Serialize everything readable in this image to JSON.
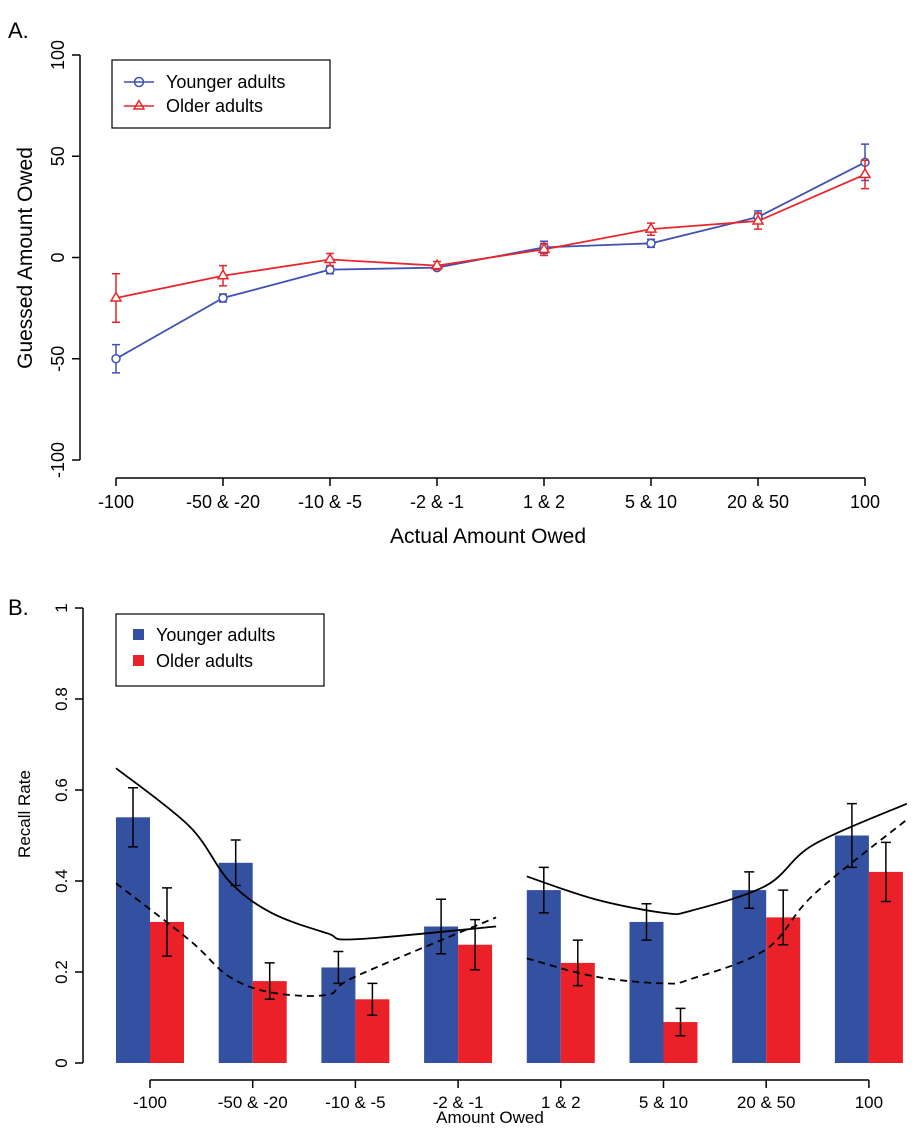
{
  "chart_data": [
    {
      "panel_label": "A.",
      "type": "line",
      "title": "",
      "xlabel": "Actual Amount Owed",
      "ylabel": "Guessed Amount Owed",
      "categories": [
        "-100",
        "-50 & -20",
        "-10 & -5",
        "-2 & -1",
        "1 & 2",
        "5 & 10",
        "20 & 50",
        "100"
      ],
      "ylim": [
        -100,
        100
      ],
      "yticks": [
        "-100",
        "-50",
        "0",
        "50",
        "100"
      ],
      "yticks_values": [
        -100,
        -50,
        0,
        50,
        100
      ],
      "grid": false,
      "legend_position": "top-left",
      "series": [
        {
          "name": "Younger adults",
          "color": "#3f51b5",
          "marker": "circle",
          "values": [
            -50,
            -20,
            -6,
            -5,
            5,
            7,
            20,
            47
          ],
          "errors": [
            7,
            2,
            2,
            1,
            3,
            2,
            3,
            9
          ]
        },
        {
          "name": "Older adults",
          "color": "#e8262b",
          "marker": "triangle",
          "values": [
            -20,
            -9,
            -1,
            -4,
            4,
            14,
            18,
            41
          ],
          "errors": [
            12,
            5,
            3,
            2,
            3,
            3,
            4,
            7
          ]
        }
      ]
    },
    {
      "panel_label": "B.",
      "type": "bar",
      "title": "",
      "xlabel": "Amount Owed",
      "ylabel": "Recall Rate",
      "categories": [
        "-100",
        "-50 & -20",
        "-10 & -5",
        "-2 & -1",
        "1 & 2",
        "5 & 10",
        "20 & 50",
        "100"
      ],
      "ylim": [
        0,
        1
      ],
      "yticks": [
        "0",
        "0.2",
        "0.4",
        "0.6",
        "0.8",
        "1"
      ],
      "yticks_values": [
        0,
        0.2,
        0.4,
        0.6,
        0.8,
        1
      ],
      "grid": false,
      "legend_position": "top-left",
      "series": [
        {
          "name": "Younger adults",
          "color": "#3450a0",
          "values": [
            0.54,
            0.44,
            0.21,
            0.3,
            0.38,
            0.31,
            0.38,
            0.5
          ],
          "errors": [
            0.065,
            0.05,
            0.035,
            0.06,
            0.05,
            0.04,
            0.04,
            0.07
          ]
        },
        {
          "name": "Older adults",
          "color": "#ea2128",
          "values": [
            0.31,
            0.18,
            0.14,
            0.26,
            0.22,
            0.09,
            0.32,
            0.42
          ],
          "errors": [
            0.075,
            0.04,
            0.035,
            0.055,
            0.05,
            0.03,
            0.06,
            0.065
          ]
        }
      ],
      "fit_curves": [
        {
          "series": "Younger adults",
          "style": "solid",
          "segment": "negative",
          "x": [
            -100,
            -75,
            -50,
            -30,
            -15,
            -7.5,
            -1.5
          ],
          "y": [
            0.648,
            0.52,
            0.4,
            0.33,
            0.285,
            0.272,
            0.3
          ]
        },
        {
          "series": "Younger adults",
          "style": "solid",
          "segment": "positive",
          "x": [
            1.5,
            3.5,
            7.5,
            15,
            35,
            65,
            100
          ],
          "y": [
            0.41,
            0.36,
            0.33,
            0.335,
            0.39,
            0.48,
            0.57
          ]
        },
        {
          "series": "Older adults",
          "style": "dashed",
          "segment": "negative",
          "x": [
            -100,
            -75,
            -50,
            -30,
            -15,
            -7.5,
            -1.5
          ],
          "y": [
            0.395,
            0.27,
            0.19,
            0.155,
            0.15,
            0.19,
            0.32
          ]
        },
        {
          "series": "Older adults",
          "style": "dashed",
          "segment": "positive",
          "x": [
            1.5,
            3.5,
            7.5,
            15,
            35,
            65,
            100
          ],
          "y": [
            0.23,
            0.19,
            0.175,
            0.185,
            0.25,
            0.37,
            0.535
          ]
        }
      ]
    }
  ]
}
